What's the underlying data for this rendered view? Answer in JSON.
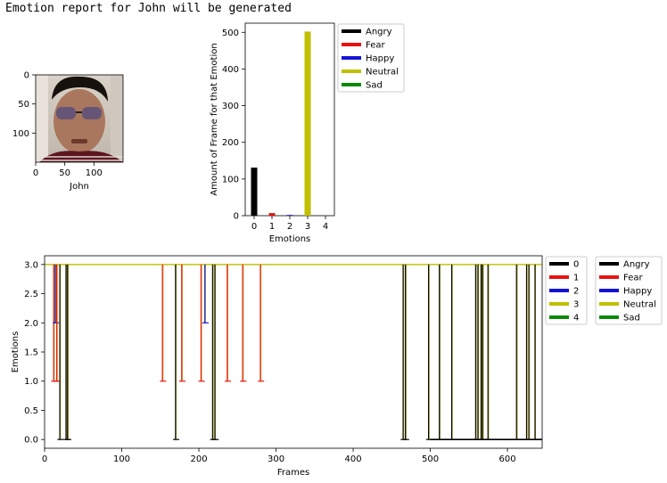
{
  "report_title": "Emotion report for John will be generated",
  "palette": {
    "Angry": "#000000",
    "Fear": "#e8120f",
    "Happy": "#1414d6",
    "Neutral": "#bfbf00",
    "Sad": "#0a8a0a"
  },
  "chart_data": [
    {
      "type": "image",
      "xlabel": "John",
      "xticks": [
        0,
        50,
        100
      ],
      "yticks": [
        0,
        50,
        100
      ],
      "xlim": [
        0,
        150
      ],
      "ylim": [
        150,
        0
      ],
      "icon": "face-photo"
    },
    {
      "type": "bar",
      "ylabel": "Amount of Frame for that Emotion",
      "xlabel": "Emotions",
      "categories": [
        0,
        1,
        2,
        3,
        4
      ],
      "values": [
        131,
        7,
        2,
        502,
        0
      ],
      "colors": [
        "#000000",
        "#e8120f",
        "#1414d6",
        "#bfbf00",
        "#0a8a0a"
      ],
      "xlim": [
        -0.5,
        4.5
      ],
      "ylim": [
        0,
        525
      ],
      "yticks": [
        0,
        100,
        200,
        300,
        400,
        500
      ],
      "legend": [
        "Angry",
        "Fear",
        "Happy",
        "Neutral",
        "Sad"
      ],
      "legend_position": "outside-right"
    },
    {
      "type": "line",
      "xlabel": "Frames",
      "ylabel": "Emotions",
      "xlim": [
        0,
        645
      ],
      "ylim": [
        -0.15,
        3.15
      ],
      "xticks": [
        0,
        100,
        200,
        300,
        400,
        500,
        600
      ],
      "yticks": [
        0.0,
        0.5,
        1.0,
        1.5,
        2.0,
        2.5,
        3.0
      ],
      "baseline": 3,
      "events": [
        {
          "frame": 12,
          "value": 1
        },
        {
          "frame": 14,
          "value": 2
        },
        {
          "frame": 16,
          "value": 1
        },
        {
          "frame": 20,
          "value": 0
        },
        {
          "frame": 28,
          "value": 0
        },
        {
          "frame": 30,
          "value": 0
        },
        {
          "frame": 153,
          "value": 1
        },
        {
          "frame": 170,
          "value": 0
        },
        {
          "frame": 178,
          "value": 1
        },
        {
          "frame": 203,
          "value": 1
        },
        {
          "frame": 208,
          "value": 2
        },
        {
          "frame": 218,
          "value": 0
        },
        {
          "frame": 221,
          "value": 0
        },
        {
          "frame": 237,
          "value": 1
        },
        {
          "frame": 257,
          "value": 1
        },
        {
          "frame": 280,
          "value": 1
        },
        {
          "frame": 465,
          "value": 0
        },
        {
          "frame": 468,
          "value": 0
        },
        {
          "frame": 498,
          "value": 0
        },
        {
          "frame": 512,
          "value": 0
        },
        {
          "frame": 528,
          "value": 0
        },
        {
          "frame": 559,
          "value": 0
        },
        {
          "frame": 562,
          "value": 0
        },
        {
          "frame": 566,
          "value": 0
        },
        {
          "frame": 568,
          "value": 0
        },
        {
          "frame": 575,
          "value": 0
        },
        {
          "frame": 612,
          "value": 0
        },
        {
          "frame": 625,
          "value": 0
        },
        {
          "frame": 628,
          "value": 0
        },
        {
          "frame": 636,
          "value": 0
        }
      ],
      "zero_segment": [
        500,
        645
      ],
      "legend_a": [
        "0",
        "1",
        "2",
        "3",
        "4"
      ],
      "legend_b": [
        "Angry",
        "Fear",
        "Happy",
        "Neutral",
        "Sad"
      ],
      "legend_position": "outside-right"
    }
  ]
}
